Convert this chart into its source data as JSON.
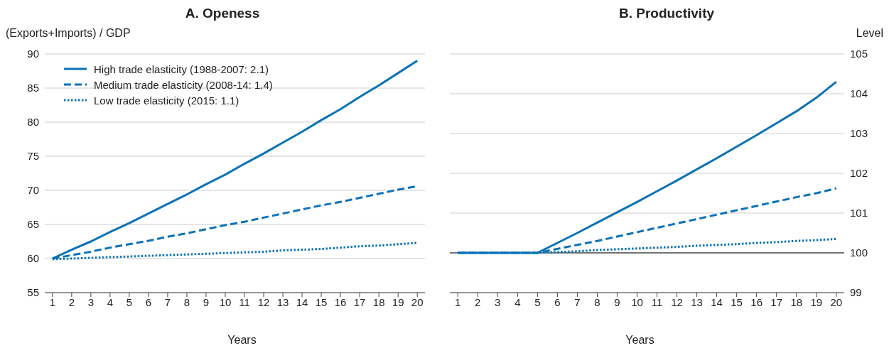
{
  "chart_data": [
    {
      "type": "line",
      "title": "A. Openess",
      "ylabel": "(Exports+Imports) / GDP",
      "xlabel": "Years",
      "x": [
        1,
        2,
        3,
        4,
        5,
        6,
        7,
        8,
        9,
        10,
        11,
        12,
        13,
        14,
        15,
        16,
        17,
        18,
        19,
        20
      ],
      "xlim": [
        0.6,
        20.4
      ],
      "xticks": [
        1,
        2,
        3,
        4,
        5,
        6,
        7,
        8,
        9,
        10,
        11,
        12,
        13,
        14,
        15,
        16,
        17,
        18,
        19,
        20
      ],
      "ylim": [
        55,
        90
      ],
      "yticks": [
        55,
        60,
        65,
        70,
        75,
        80,
        85,
        90
      ],
      "grid": "y",
      "legend": "top left",
      "marker": "none",
      "series": [
        {
          "name": "High trade elasticity (1988-2007: 2.1)",
          "color": "#0b72b5",
          "line_style": "solid",
          "values": [
            60,
            61.3,
            62.5,
            63.9,
            65.2,
            66.6,
            68,
            69.4,
            70.9,
            72.3,
            73.9,
            75.4,
            77,
            78.6,
            80.3,
            81.9,
            83.7,
            85.4,
            87.2,
            89
          ]
        },
        {
          "name": "Medium trade elasticity (2008-14: 1.4)",
          "color": "#0b72b5",
          "line_style": "dashed",
          "values": [
            60,
            60.5,
            61,
            61.6,
            62.1,
            62.6,
            63.2,
            63.7,
            64.3,
            64.9,
            65.4,
            66,
            66.6,
            67.2,
            67.8,
            68.3,
            68.9,
            69.5,
            70.1,
            70.6
          ]
        },
        {
          "name": "Low trade elasticity (2015: 1.1)",
          "color": "#0b72b5",
          "line_style": "dotted",
          "values": [
            59.9,
            60,
            60.1,
            60.2,
            60.3,
            60.4,
            60.5,
            60.6,
            60.7,
            60.8,
            60.9,
            61,
            61.2,
            61.3,
            61.4,
            61.6,
            61.8,
            61.9,
            62.1,
            62.3
          ]
        }
      ]
    },
    {
      "type": "line",
      "title": "B. Productivity",
      "ylabel": "Level",
      "xlabel": "Years",
      "x": [
        1,
        2,
        3,
        4,
        5,
        6,
        7,
        8,
        9,
        10,
        11,
        12,
        13,
        14,
        15,
        16,
        17,
        18,
        19,
        20
      ],
      "xlim": [
        0.6,
        20.4
      ],
      "xticks": [
        1,
        2,
        3,
        4,
        5,
        6,
        7,
        8,
        9,
        10,
        11,
        12,
        13,
        14,
        15,
        16,
        17,
        18,
        19,
        20
      ],
      "ylim": [
        99,
        105
      ],
      "yticks": [
        99,
        100,
        101,
        102,
        103,
        104,
        105
      ],
      "grid": "y",
      "legend": false,
      "marker": "none",
      "ref_lines": [
        {
          "axis": "y",
          "value": 100,
          "color": "#000000"
        }
      ],
      "series": [
        {
          "color": "#0b72b5",
          "line_style": "solid",
          "values": [
            100,
            100,
            100,
            100,
            100,
            100.25,
            100.5,
            100.76,
            101.02,
            101.28,
            101.55,
            101.82,
            102.1,
            102.38,
            102.67,
            102.96,
            103.26,
            103.56,
            103.9,
            104.3
          ]
        },
        {
          "color": "#0b72b5",
          "line_style": "dashed",
          "values": [
            100,
            100,
            100,
            100,
            100,
            100.1,
            100.2,
            100.3,
            100.41,
            100.52,
            100.63,
            100.74,
            100.85,
            100.96,
            101.07,
            101.18,
            101.29,
            101.4,
            101.5,
            101.62
          ]
        },
        {
          "color": "#0b72b5",
          "line_style": "dotted",
          "values": [
            100,
            100,
            100,
            100,
            100,
            100.02,
            100.04,
            100.07,
            100.09,
            100.11,
            100.13,
            100.15,
            100.18,
            100.2,
            100.22,
            100.25,
            100.27,
            100.3,
            100.32,
            100.35
          ]
        }
      ]
    }
  ]
}
